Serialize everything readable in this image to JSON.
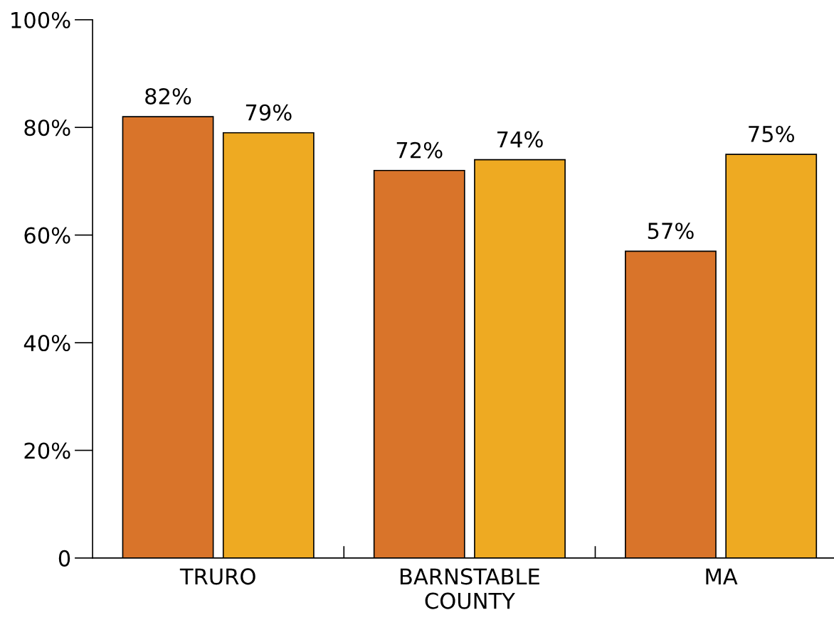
{
  "chart_data": {
    "type": "bar",
    "categories": [
      "TRURO",
      "BARNSTABLE\nCOUNTY",
      "MA"
    ],
    "series": [
      {
        "color": "#d9742a",
        "values": [
          82,
          72,
          57
        ],
        "value_labels": [
          "82%",
          "72%",
          "57%"
        ]
      },
      {
        "color": "#eeaa22",
        "values": [
          79,
          74,
          75
        ],
        "value_labels": [
          "79%",
          "74%",
          "75%"
        ]
      }
    ],
    "ylim": [
      0,
      100
    ],
    "yticks": [
      {
        "value": 0,
        "label": "0"
      },
      {
        "value": 20,
        "label": "20%"
      },
      {
        "value": 40,
        "label": "40%"
      },
      {
        "value": 60,
        "label": "60%"
      },
      {
        "value": 80,
        "label": "80%"
      },
      {
        "value": 100,
        "label": "100%"
      }
    ],
    "grid": false
  }
}
